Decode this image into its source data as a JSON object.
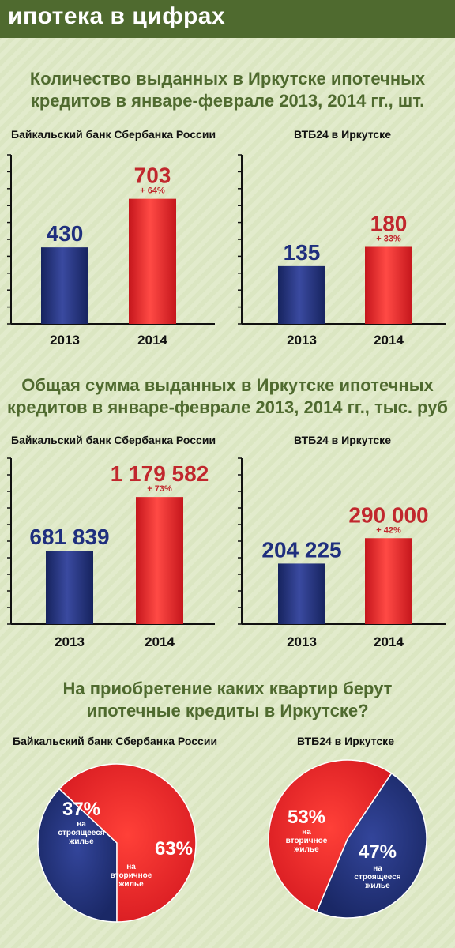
{
  "header": {
    "title": "ипотека в цифрах"
  },
  "section_count": {
    "title_line1": "Количество выданных в Иркутске ипотечных",
    "title_line2": "кредитов в январе-феврале 2013, 2014 гг., шт."
  },
  "section_sum": {
    "title_line1": "Общая сумма выданных в Иркутске ипотечных",
    "title_line2": "кредитов в январе-феврале 2013, 2014 гг., тыс. руб"
  },
  "section_pie": {
    "title_line1": "На приобретение каких квартир берут",
    "title_line2": "ипотечные кредиты в Иркутске?"
  },
  "colors": {
    "blue": "#1f2f7e",
    "red": "#e8262b",
    "green": "#4f6a2f",
    "value_red": "#c1272d"
  },
  "chart_data": [
    {
      "type": "bar",
      "title": "Байкальский банк Сбербанка России",
      "categories": [
        "2013",
        "2014"
      ],
      "values": [
        430,
        703
      ],
      "value_labels": [
        "430",
        "703"
      ],
      "annotations": [
        "",
        "+ 64%"
      ]
    },
    {
      "type": "bar",
      "title": "ВТБ24 в Иркутске",
      "categories": [
        "2013",
        "2014"
      ],
      "values": [
        135,
        180
      ],
      "value_labels": [
        "135",
        "180"
      ],
      "annotations": [
        "",
        "+ 33%"
      ]
    },
    {
      "type": "bar",
      "title": "Байкальский банк Сбербанка России",
      "categories": [
        "2013",
        "2014"
      ],
      "values": [
        681839,
        1179582
      ],
      "value_labels": [
        "681 839",
        "1 179 582"
      ],
      "annotations": [
        "",
        "+ 73%"
      ]
    },
    {
      "type": "bar",
      "title": "ВТБ24 в Иркутске",
      "categories": [
        "2013",
        "2014"
      ],
      "values": [
        204225,
        290000
      ],
      "value_labels": [
        "204 225",
        "290 000"
      ],
      "annotations": [
        "",
        "+ 42%"
      ]
    },
    {
      "type": "pie",
      "title": "Байкальский банк Сбербанка России",
      "slices": [
        {
          "label": "на строящееся жилье",
          "value": 37,
          "pct_label": "37%"
        },
        {
          "label": "на вторичное жилье",
          "value": 63,
          "pct_label": "63%"
        }
      ]
    },
    {
      "type": "pie",
      "title": "ВТБ24 в Иркутске",
      "slices": [
        {
          "label": "на вторичное жилье",
          "value": 53,
          "pct_label": "53%"
        },
        {
          "label": "на строящееся жилье",
          "value": 47,
          "pct_label": "47%"
        }
      ]
    }
  ]
}
